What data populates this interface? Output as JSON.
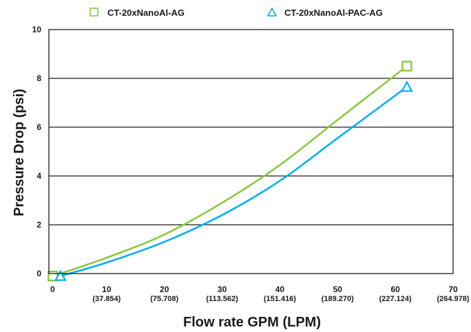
{
  "chart_data": {
    "type": "line",
    "title": "",
    "xlabel": "Flow rate GPM (LPM)",
    "ylabel": "Pressure Drop (psi)",
    "xlim": [
      0,
      70
    ],
    "ylim": [
      0,
      10
    ],
    "x_ticks": [
      {
        "value": 0,
        "label": "0",
        "sublabel": ""
      },
      {
        "value": 10,
        "label": "10",
        "sublabel": "(37.854)"
      },
      {
        "value": 20,
        "label": "20",
        "sublabel": "(75.708)"
      },
      {
        "value": 30,
        "label": "30",
        "sublabel": "(113.562)"
      },
      {
        "value": 40,
        "label": "40",
        "sublabel": "(151.416)"
      },
      {
        "value": 50,
        "label": "50",
        "sublabel": "(189.270)"
      },
      {
        "value": 60,
        "label": "60",
        "sublabel": "(227.124)"
      },
      {
        "value": 70,
        "label": "70",
        "sublabel": "(264.978)"
      }
    ],
    "y_ticks": [
      0,
      2,
      4,
      6,
      8,
      10
    ],
    "grid": "horizontal",
    "legend_position": "top",
    "series": [
      {
        "name": "CT-20xNanoAl-AG",
        "color": "#8dc63f",
        "marker": "square",
        "x": [
          0.7,
          10,
          20,
          30,
          40,
          50,
          62
        ],
        "y": [
          -0.1,
          0.65,
          1.6,
          2.9,
          4.45,
          6.3,
          8.5
        ],
        "marker_x": [
          0.7,
          62
        ],
        "marker_y": [
          -0.1,
          8.5
        ]
      },
      {
        "name": "CT-20xNanoAl-PAC-AG",
        "color": "#00aeef",
        "marker": "triangle",
        "x": [
          2,
          10,
          20,
          30,
          40,
          50,
          62
        ],
        "y": [
          -0.1,
          0.45,
          1.3,
          2.4,
          3.8,
          5.55,
          7.65
        ],
        "marker_x": [
          2,
          62
        ],
        "marker_y": [
          -0.1,
          7.65
        ]
      }
    ]
  }
}
